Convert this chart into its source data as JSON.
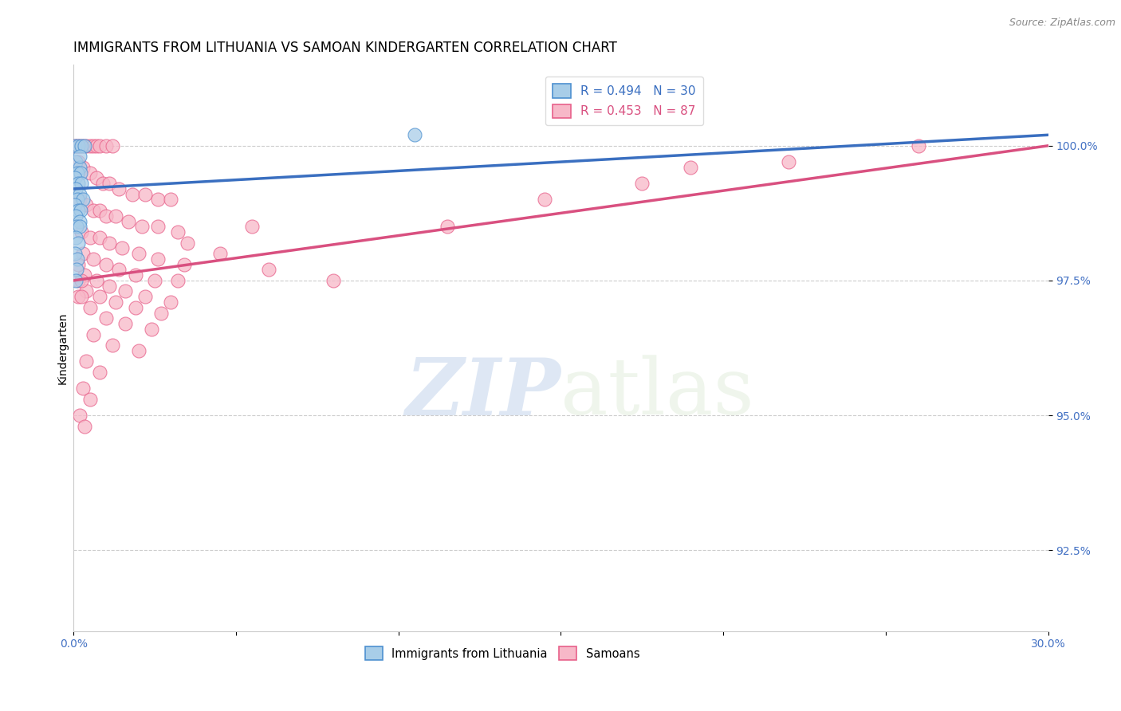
{
  "title": "IMMIGRANTS FROM LITHUANIA VS SAMOAN KINDERGARTEN CORRELATION CHART",
  "source": "Source: ZipAtlas.com",
  "ylabel": "Kindergarten",
  "yticks": [
    92.5,
    95.0,
    97.5,
    100.0
  ],
  "ytick_labels": [
    "92.5%",
    "95.0%",
    "97.5%",
    "100.0%"
  ],
  "xlim": [
    0.0,
    30.0
  ],
  "ylim": [
    91.0,
    101.5
  ],
  "legend_blue_label": "R = 0.494   N = 30",
  "legend_pink_label": "R = 0.453   N = 87",
  "legend_label_blue": "Immigrants from Lithuania",
  "legend_label_pink": "Samoans",
  "blue_color": "#a8cde8",
  "pink_color": "#f7b8c8",
  "blue_edge_color": "#4d90d0",
  "pink_edge_color": "#e8608a",
  "blue_line_color": "#3a6fc0",
  "pink_line_color": "#d95080",
  "blue_scatter": [
    [
      0.05,
      100.0
    ],
    [
      0.15,
      100.0
    ],
    [
      0.25,
      100.0
    ],
    [
      0.35,
      100.0
    ],
    [
      0.08,
      99.7
    ],
    [
      0.18,
      99.6
    ],
    [
      0.12,
      99.5
    ],
    [
      0.22,
      99.5
    ],
    [
      0.05,
      99.4
    ],
    [
      0.15,
      99.3
    ],
    [
      0.25,
      99.3
    ],
    [
      0.08,
      99.2
    ],
    [
      0.18,
      99.1
    ],
    [
      0.12,
      99.0
    ],
    [
      0.28,
      99.0
    ],
    [
      0.05,
      98.9
    ],
    [
      0.15,
      98.8
    ],
    [
      0.22,
      98.8
    ],
    [
      0.08,
      98.7
    ],
    [
      0.18,
      98.6
    ],
    [
      0.1,
      98.5
    ],
    [
      0.2,
      98.5
    ],
    [
      0.08,
      98.3
    ],
    [
      0.15,
      98.2
    ],
    [
      0.05,
      98.0
    ],
    [
      0.12,
      97.9
    ],
    [
      0.1,
      97.7
    ],
    [
      0.08,
      97.5
    ],
    [
      10.5,
      100.2
    ],
    [
      0.2,
      99.8
    ]
  ],
  "pink_scatter": [
    [
      0.05,
      100.0
    ],
    [
      0.12,
      100.0
    ],
    [
      0.2,
      100.0
    ],
    [
      0.3,
      100.0
    ],
    [
      0.4,
      100.0
    ],
    [
      0.5,
      100.0
    ],
    [
      0.6,
      100.0
    ],
    [
      0.7,
      100.0
    ],
    [
      0.8,
      100.0
    ],
    [
      1.0,
      100.0
    ],
    [
      1.2,
      100.0
    ],
    [
      26.0,
      100.0
    ],
    [
      0.15,
      99.7
    ],
    [
      0.3,
      99.6
    ],
    [
      0.5,
      99.5
    ],
    [
      0.7,
      99.4
    ],
    [
      0.9,
      99.3
    ],
    [
      1.1,
      99.3
    ],
    [
      1.4,
      99.2
    ],
    [
      1.8,
      99.1
    ],
    [
      2.2,
      99.1
    ],
    [
      2.6,
      99.0
    ],
    [
      3.0,
      99.0
    ],
    [
      0.2,
      99.0
    ],
    [
      0.4,
      98.9
    ],
    [
      0.6,
      98.8
    ],
    [
      0.8,
      98.8
    ],
    [
      1.0,
      98.7
    ],
    [
      1.3,
      98.7
    ],
    [
      1.7,
      98.6
    ],
    [
      2.1,
      98.5
    ],
    [
      2.6,
      98.5
    ],
    [
      3.2,
      98.4
    ],
    [
      0.25,
      98.4
    ],
    [
      0.5,
      98.3
    ],
    [
      0.8,
      98.3
    ],
    [
      1.1,
      98.2
    ],
    [
      1.5,
      98.1
    ],
    [
      2.0,
      98.0
    ],
    [
      2.6,
      97.9
    ],
    [
      3.4,
      97.8
    ],
    [
      0.3,
      98.0
    ],
    [
      0.6,
      97.9
    ],
    [
      1.0,
      97.8
    ],
    [
      1.4,
      97.7
    ],
    [
      1.9,
      97.6
    ],
    [
      2.5,
      97.5
    ],
    [
      3.2,
      97.5
    ],
    [
      0.35,
      97.6
    ],
    [
      0.7,
      97.5
    ],
    [
      1.1,
      97.4
    ],
    [
      1.6,
      97.3
    ],
    [
      2.2,
      97.2
    ],
    [
      3.0,
      97.1
    ],
    [
      0.4,
      97.3
    ],
    [
      0.8,
      97.2
    ],
    [
      1.3,
      97.1
    ],
    [
      1.9,
      97.0
    ],
    [
      2.7,
      96.9
    ],
    [
      0.5,
      97.0
    ],
    [
      1.0,
      96.8
    ],
    [
      1.6,
      96.7
    ],
    [
      2.4,
      96.6
    ],
    [
      0.6,
      96.5
    ],
    [
      1.2,
      96.3
    ],
    [
      2.0,
      96.2
    ],
    [
      0.4,
      96.0
    ],
    [
      0.8,
      95.8
    ],
    [
      0.3,
      95.5
    ],
    [
      0.5,
      95.3
    ],
    [
      0.2,
      95.0
    ],
    [
      0.35,
      94.8
    ],
    [
      8.0,
      97.5
    ],
    [
      19.0,
      99.6
    ],
    [
      14.5,
      99.0
    ],
    [
      11.5,
      98.5
    ],
    [
      17.5,
      99.3
    ],
    [
      6.0,
      97.7
    ],
    [
      22.0,
      99.7
    ],
    [
      0.15,
      97.8
    ],
    [
      0.15,
      97.5
    ],
    [
      0.15,
      97.2
    ],
    [
      0.25,
      97.5
    ],
    [
      0.25,
      97.2
    ],
    [
      3.5,
      98.2
    ],
    [
      4.5,
      98.0
    ],
    [
      5.5,
      98.5
    ]
  ],
  "blue_line_x": [
    0.0,
    30.0
  ],
  "blue_line_y": [
    99.2,
    100.2
  ],
  "pink_line_x": [
    0.0,
    30.0
  ],
  "pink_line_y": [
    97.5,
    100.0
  ],
  "watermark_zip": "ZIP",
  "watermark_atlas": "atlas",
  "background_color": "#ffffff",
  "grid_color": "#cccccc",
  "axis_label_color": "#4472c4",
  "title_fontsize": 12,
  "label_fontsize": 10,
  "tick_fontsize": 10
}
